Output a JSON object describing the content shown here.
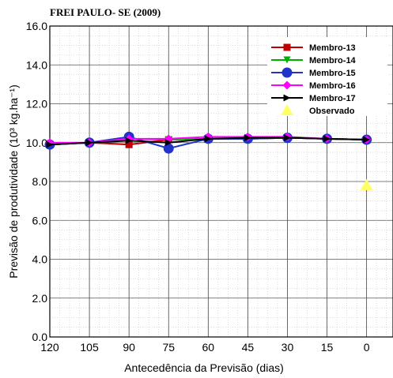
{
  "chart_data": {
    "type": "line",
    "title": "FREI PAULO- SE (2009)",
    "xlabel": "Antecedência da Previsão (dias)",
    "ylabel": "Previsão de produtividade (10³ kg.ha⁻¹)",
    "xlim": [
      120,
      -10
    ],
    "ylim": [
      0,
      16
    ],
    "x_ticks": [
      "120",
      "105",
      "90",
      "75",
      "60",
      "45",
      "30",
      "15",
      "0"
    ],
    "y_ticks": [
      "0.0",
      "2.0",
      "4.0",
      "6.0",
      "8.0",
      "10.0",
      "12.0",
      "14.0",
      "16.0"
    ],
    "grid": true,
    "legend_position": "top-right",
    "series": [
      {
        "name": "Membro-13",
        "color": "#c00000",
        "marker": "square",
        "x": [
          120,
          105,
          90,
          75,
          60,
          45,
          30,
          15,
          0
        ],
        "values": [
          9.9,
          10.0,
          9.9,
          10.15,
          10.2,
          10.2,
          10.25,
          10.2,
          10.15
        ]
      },
      {
        "name": "Membro-14",
        "color": "#00b000",
        "marker": "triangle-down",
        "x": [
          120,
          105,
          90,
          75,
          60,
          45,
          30,
          15,
          0
        ],
        "values": [
          9.9,
          10.0,
          10.2,
          10.15,
          10.2,
          10.2,
          10.25,
          10.2,
          10.15
        ]
      },
      {
        "name": "Membro-15",
        "color": "#2233cc",
        "marker": "circle",
        "x": [
          120,
          105,
          90,
          75,
          60,
          45,
          30,
          15,
          0
        ],
        "values": [
          9.9,
          10.0,
          10.3,
          9.7,
          10.2,
          10.2,
          10.25,
          10.2,
          10.15
        ]
      },
      {
        "name": "Membro-16",
        "color": "#ff00ff",
        "marker": "diamond",
        "x": [
          120,
          105,
          90,
          75,
          60,
          45,
          30,
          15,
          0
        ],
        "values": [
          10.0,
          10.0,
          10.2,
          10.2,
          10.3,
          10.3,
          10.3,
          10.2,
          10.15
        ]
      },
      {
        "name": "Membro-17",
        "color": "#000000",
        "marker": "triangle-right",
        "x": [
          120,
          105,
          90,
          75,
          60,
          45,
          30,
          15,
          0
        ],
        "values": [
          9.9,
          10.0,
          10.1,
          10.0,
          10.2,
          10.25,
          10.25,
          10.2,
          10.15
        ]
      },
      {
        "name": "Observado",
        "color": "#ffff66",
        "marker": "triangle-up",
        "x": [
          0
        ],
        "values": [
          7.8
        ]
      }
    ]
  }
}
